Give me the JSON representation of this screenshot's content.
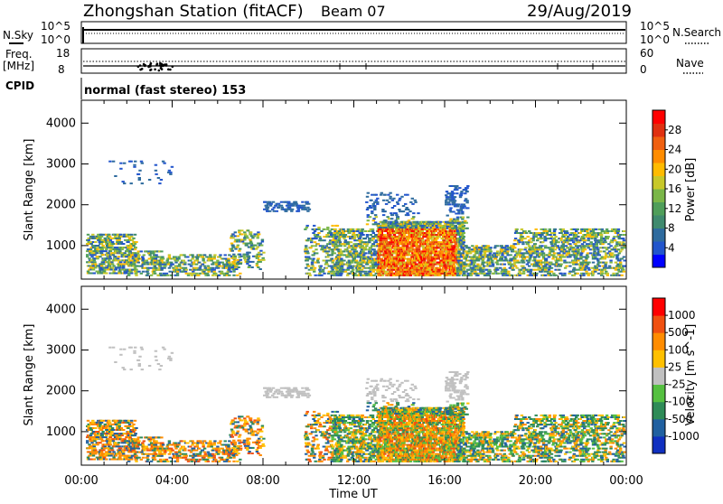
{
  "header": {
    "station": "Zhongshan Station (fitACF)",
    "beam": "Beam 07",
    "date": "29/Aug/2019"
  },
  "top_panels": {
    "nsky_label": "N.Sky",
    "nsky_tick_hi": "10^5",
    "nsky_tick_lo": "10^0",
    "nsearch_label": "N.Search",
    "nsearch_tick_hi": "10^5",
    "nsearch_tick_lo": "10^0",
    "freq_label_line1": "Freq.",
    "freq_label_line2": "[MHz]",
    "freq_tick_hi": "18",
    "freq_tick_lo": "8",
    "nave_label": "Nave",
    "nave_tick_hi": "60",
    "nave_tick_lo": "0",
    "cpid_label": "CPID",
    "cpid_text": "normal (fast stereo) 153"
  },
  "chart_data": [
    {
      "type": "heatmap",
      "name": "power",
      "xlabel": "Time UT",
      "ylabel": "Slant Range [km]",
      "xticks": [
        "00:00",
        "04:00",
        "08:00",
        "12:00",
        "16:00",
        "20:00",
        "00:00"
      ],
      "xlim": [
        0,
        24
      ],
      "yticks": [
        1000,
        2000,
        3000,
        4000
      ],
      "ylim": [
        180,
        4560
      ],
      "colorbar": {
        "label": "Power [dB]",
        "ticks": [
          "4",
          "8",
          "12",
          "16",
          "20",
          "24",
          "28"
        ],
        "colors": [
          "#0000ff",
          "#2255cc",
          "#2e6b9e",
          "#3f8a6e",
          "#4f9e5a",
          "#7ab648",
          "#c8c82a",
          "#ffbb00",
          "#ff8c00",
          "#f06010",
          "#e03010",
          "#ff0000"
        ]
      }
    },
    {
      "type": "heatmap",
      "name": "velocity",
      "xlabel": "Time UT",
      "ylabel": "Slant Range [km]",
      "xticks": [
        "00:00",
        "04:00",
        "08:00",
        "12:00",
        "16:00",
        "20:00",
        "00:00"
      ],
      "xlim": [
        0,
        24
      ],
      "yticks": [
        1000,
        2000,
        3000,
        4000
      ],
      "ylim": [
        180,
        4560
      ],
      "colorbar": {
        "label": "Velocity [m s^-1]",
        "ticks": [
          "1000",
          "500",
          "100",
          "25",
          "-25",
          "-100",
          "-500",
          "-1000"
        ],
        "colors": [
          "#1030c0",
          "#2060a0",
          "#2e8b57",
          "#55c040",
          "#c0c0c0",
          "#ffc000",
          "#ff8c00",
          "#f05010",
          "#ff0000"
        ]
      }
    }
  ],
  "xlabel_text": "Time UT",
  "colors": {
    "power_blue": "#1f4fa8",
    "power_green": "#3c8f52",
    "power_orange": "#ff8a00",
    "velocity_orange": "#f07a10",
    "velocity_green": "#3e9a55",
    "velocity_grey": "#c8c8b0"
  }
}
